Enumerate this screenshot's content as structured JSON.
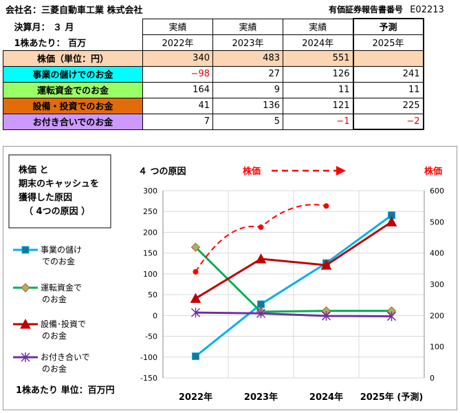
{
  "header": {
    "company_label": "会社名：三菱自動車工業 株式会社",
    "report_label": "有価証券報告書番号",
    "report_code": "E02213",
    "fiscal_month": "決算月： ３ 月",
    "per_share_unit": "1株あたり： 百万"
  },
  "table": {
    "col_heads": [
      {
        "top": "実績",
        "sub": "2022年"
      },
      {
        "top": "実績",
        "sub": "2023年"
      },
      {
        "top": "実績",
        "sub": "2024年"
      },
      {
        "top": "予測",
        "sub": "2025年"
      }
    ],
    "rows": [
      {
        "label": "株価（単位：円）",
        "color": "#fcd5b4",
        "values": [
          "340",
          "483",
          "551",
          ""
        ]
      },
      {
        "label": "事業の儲けでのお金",
        "color": "#00ffff",
        "values": [
          "−98",
          "27",
          "126",
          "241"
        ]
      },
      {
        "label": "運転資金でのお金",
        "color": "#99ff66",
        "values": [
          "164",
          "9",
          "11",
          "11"
        ]
      },
      {
        "label": "設備・投資でのお金",
        "color": "#e26b0a",
        "values": [
          "41",
          "136",
          "121",
          "225"
        ]
      },
      {
        "label": "お付き合いでのお金",
        "color": "#cc99ff",
        "values": [
          "7",
          "5",
          "−1",
          "−2"
        ]
      }
    ]
  },
  "chart_data": {
    "type": "line",
    "categories": [
      "2022年",
      "2023年",
      "2024年",
      "2025年 (予測)"
    ],
    "left_axis": {
      "ylim": [
        -150,
        300
      ],
      "ticks": [
        "300",
        "250",
        "200",
        "150",
        "100",
        "50",
        "0",
        "-50",
        "-100",
        "-150"
      ]
    },
    "right_axis": {
      "ylim": [
        0,
        600
      ],
      "ticks": [
        "600",
        "500",
        "400",
        "300",
        "200",
        "100",
        "0"
      ]
    },
    "series": [
      {
        "name": "事業の儲けでのお金",
        "color": "#00b0f0",
        "marker": "square",
        "values": [
          -98,
          27,
          126,
          241
        ]
      },
      {
        "name": "運転資金でのお金",
        "color": "#00b050",
        "marker": "diamond",
        "values": [
          164,
          9,
          11,
          11
        ]
      },
      {
        "name": "設備･投資でのお金",
        "color": "#c00000",
        "marker": "triangle",
        "values": [
          41,
          136,
          121,
          225
        ]
      },
      {
        "name": "お付き合いでのお金",
        "color": "#7030a0",
        "marker": "star",
        "values": [
          7,
          5,
          -1,
          -2
        ]
      }
    ],
    "stock_series": {
      "name": "株価",
      "color": "#ff0000",
      "axis": "right",
      "values": [
        340,
        483,
        551
      ]
    },
    "legend": {
      "items": [
        "事業の儲け\nでのお金",
        "運転資金で\nのお金",
        "設備･投資で\nのお金",
        "お付き合いで\nのお金"
      ],
      "placement": "left"
    },
    "title_box": "株価 と\n期末のキャッシュを\n獲得した原因\n（ 4つの原因 ）",
    "annotation_left": "４ つの原因",
    "annotation_mid": "株価",
    "annotation_right": "株価",
    "unit_note": "1株あたり 単位：百万円"
  }
}
